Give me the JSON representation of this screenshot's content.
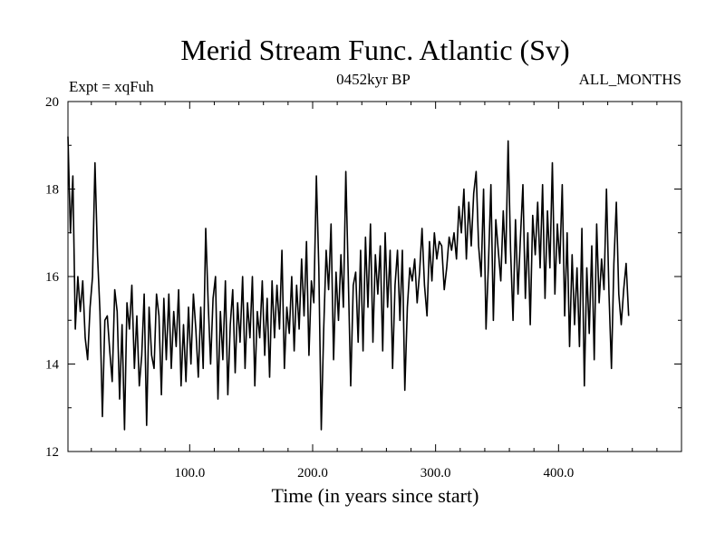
{
  "chart_data": {
    "type": "line",
    "title": "Merid Stream Func. Atlantic (Sv)",
    "subtitle_left": "Expt = xqFuh",
    "subtitle_center": "0452kyr BP",
    "subtitle_right": "ALL_MONTHS",
    "xlabel": "Time (in years since start)",
    "ylabel": "",
    "xlim": [
      1,
      500
    ],
    "ylim": [
      12,
      20
    ],
    "x_ticks": [
      100,
      200,
      300,
      400
    ],
    "x_tick_labels": [
      "100.0",
      "200.0",
      "300.0",
      "400.0"
    ],
    "y_ticks": [
      12,
      14,
      16,
      18,
      20
    ],
    "y_tick_labels": [
      "12",
      "14",
      "16",
      "18",
      "20"
    ],
    "grid": false,
    "series": [
      {
        "name": "Merid Stream Func. Atlantic",
        "color": "#000000",
        "x_start": 1,
        "x_step": 2,
        "values": [
          19.2,
          17.0,
          18.3,
          14.8,
          16.0,
          15.2,
          15.9,
          14.6,
          14.1,
          15.3,
          16.0,
          18.6,
          16.5,
          15.2,
          12.8,
          15.0,
          15.1,
          14.3,
          13.6,
          15.7,
          15.2,
          13.2,
          14.9,
          12.5,
          15.4,
          14.8,
          15.8,
          13.9,
          15.1,
          13.5,
          14.2,
          15.6,
          12.6,
          15.3,
          14.2,
          13.9,
          15.6,
          15.1,
          13.3,
          15.5,
          14.1,
          15.6,
          13.9,
          15.2,
          14.4,
          15.7,
          13.5,
          14.9,
          13.6,
          15.3,
          14.0,
          15.6,
          14.8,
          13.7,
          15.3,
          13.9,
          17.1,
          15.4,
          14.0,
          15.5,
          16.0,
          13.2,
          15.2,
          14.1,
          15.9,
          13.3,
          14.9,
          15.7,
          13.8,
          15.4,
          14.5,
          16.0,
          13.9,
          15.4,
          14.6,
          16.0,
          13.5,
          15.2,
          14.6,
          15.9,
          14.2,
          15.5,
          13.7,
          15.9,
          14.6,
          15.8,
          14.8,
          16.6,
          13.9,
          15.3,
          14.7,
          16.0,
          14.3,
          15.8,
          14.8,
          16.4,
          15.1,
          16.8,
          14.2,
          15.9,
          15.4,
          18.3,
          16.2,
          12.5,
          14.8,
          16.6,
          15.7,
          17.2,
          14.1,
          16.1,
          15.0,
          16.5,
          15.3,
          18.4,
          16.0,
          13.5,
          15.8,
          16.1,
          14.5,
          16.6,
          14.3,
          16.9,
          15.3,
          17.2,
          14.5,
          16.5,
          15.6,
          16.7,
          14.3,
          17.0,
          15.3,
          16.6,
          13.9,
          15.8,
          16.6,
          15.0,
          16.6,
          13.4,
          15.3,
          16.2,
          15.9,
          16.4,
          15.4,
          16.1,
          17.1,
          15.8,
          15.1,
          16.8,
          15.9,
          17.0,
          16.4,
          16.8,
          16.7,
          15.7,
          16.2,
          16.9,
          16.6,
          17.0,
          16.4,
          17.6,
          17.0,
          18.0,
          16.4,
          17.7,
          16.7,
          17.9,
          18.4,
          16.7,
          16.0,
          18.0,
          14.8,
          16.3,
          18.1,
          15.0,
          17.3,
          16.6,
          15.9,
          17.5,
          16.3,
          19.1,
          16.6,
          15.0,
          17.3,
          15.6,
          16.9,
          18.1,
          15.5,
          17.0,
          14.9,
          17.4,
          16.5,
          17.7,
          16.2,
          18.1,
          15.5,
          17.5,
          16.2,
          18.6,
          15.6,
          17.2,
          16.3,
          18.1,
          15.1,
          17.0,
          14.4,
          16.5,
          14.9,
          16.2,
          14.4,
          17.1,
          13.5,
          16.2,
          14.7,
          16.7,
          14.1,
          17.2,
          15.4,
          16.4,
          15.7,
          18.0,
          15.6,
          13.9,
          16.3,
          17.7,
          15.6,
          14.9,
          15.7,
          16.3,
          15.1
        ]
      }
    ]
  }
}
